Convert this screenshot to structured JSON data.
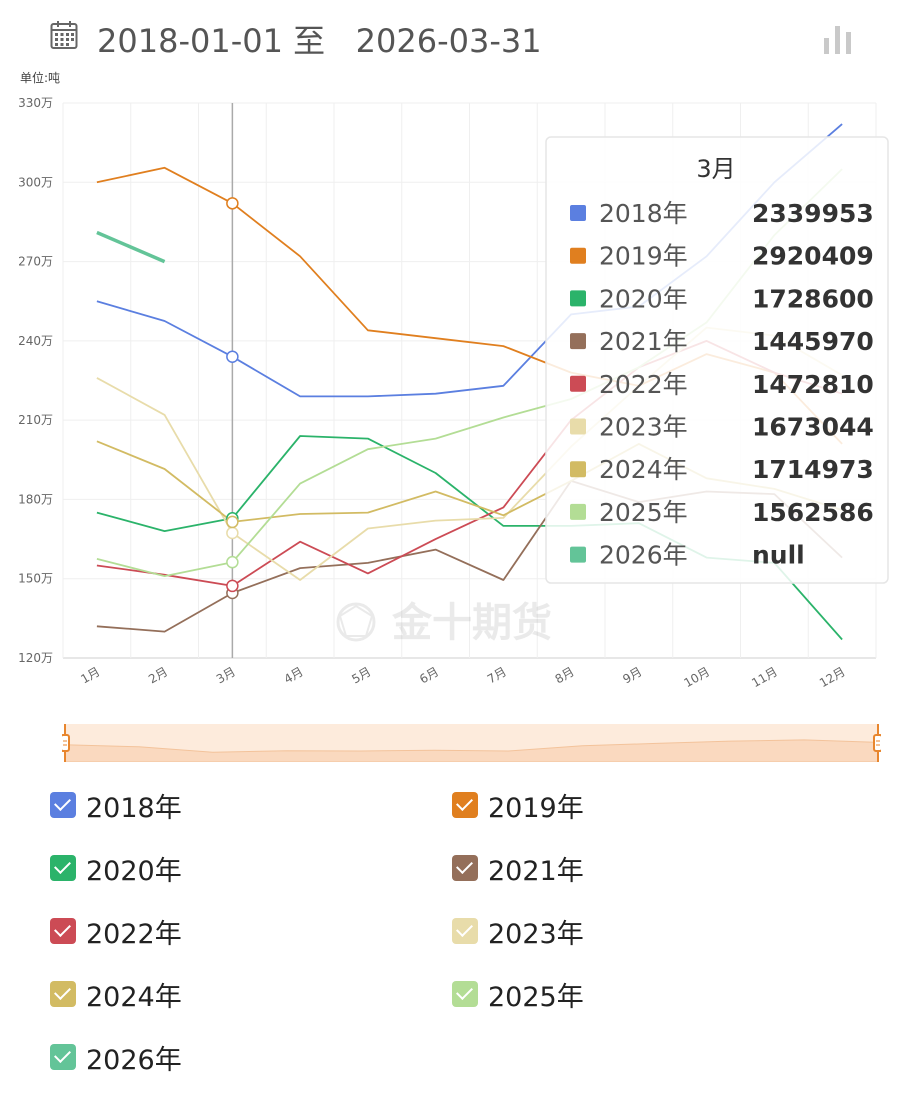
{
  "header": {
    "start_date": "2018-01-01",
    "separator": "至",
    "end_date": "2026-03-31",
    "calendar_icon": "calendar-icon",
    "chart_toggle_icon": "bar-chart-icon"
  },
  "watermark": "金十期货",
  "chart_data": {
    "type": "line",
    "unit_label": "单位:吨",
    "categories": [
      "1月",
      "2月",
      "3月",
      "4月",
      "5月",
      "6月",
      "7月",
      "8月",
      "9月",
      "10月",
      "11月",
      "12月"
    ],
    "y_ticks": [
      "120万",
      "150万",
      "180万",
      "210万",
      "240万",
      "270万",
      "300万",
      "330万"
    ],
    "ylim": [
      1200000,
      3300000
    ],
    "grid": true,
    "hover_index": 2,
    "series": [
      {
        "name": "2018年",
        "color": "#5b7fe0",
        "values": [
          2550000,
          2475000,
          2339953,
          2190000,
          2190000,
          2200000,
          2230000,
          2500000,
          2530000,
          2720000,
          3000000,
          3220000
        ]
      },
      {
        "name": "2019年",
        "color": "#e07f1f",
        "values": [
          3000000,
          3055000,
          2920409,
          2720000,
          2440000,
          2410000,
          2380000,
          2280000,
          2230000,
          2350000,
          2280000,
          2010000
        ]
      },
      {
        "name": "2020年",
        "color": "#2bb36a",
        "values": [
          1750000,
          1680000,
          1728600,
          2040000,
          2030000,
          1900000,
          1700000,
          1700000,
          1710000,
          1580000,
          1560000,
          1270000
        ]
      },
      {
        "name": "2021年",
        "color": "#946f5a",
        "values": [
          1320000,
          1300000,
          1445970,
          1540000,
          1560000,
          1610000,
          1495000,
          1870000,
          1790000,
          1830000,
          1820000,
          1580000
        ]
      },
      {
        "name": "2022年",
        "color": "#cc4b55",
        "values": [
          1550000,
          1515000,
          1472810,
          1640000,
          1520000,
          1650000,
          1770000,
          2100000,
          2300000,
          2400000,
          2280000,
          2200000
        ]
      },
      {
        "name": "2023年",
        "color": "#e8dcaa",
        "values": [
          2260000,
          2120000,
          1673044,
          1495000,
          1690000,
          1720000,
          1730000,
          2000000,
          2230000,
          2450000,
          2420000,
          2270000
        ]
      },
      {
        "name": "2024年",
        "color": "#d2bb63",
        "values": [
          2020000,
          1915000,
          1714973,
          1745000,
          1750000,
          1830000,
          1740000,
          1870000,
          2010000,
          1880000,
          1840000,
          1760000
        ]
      },
      {
        "name": "2025年",
        "color": "#b3dd95",
        "values": [
          1575000,
          1510000,
          1562586,
          1860000,
          1990000,
          2030000,
          2110000,
          2180000,
          2300000,
          2470000,
          2800000,
          3050000
        ]
      },
      {
        "name": "2026年",
        "color": "#63c498",
        "values": [
          2810000,
          2700000,
          null,
          null,
          null,
          null,
          null,
          null,
          null,
          null,
          null,
          null
        ]
      }
    ]
  },
  "tooltip": {
    "title": "3月",
    "rows": [
      {
        "label": "2018年",
        "value": "2339953"
      },
      {
        "label": "2019年",
        "value": "2920409"
      },
      {
        "label": "2020年",
        "value": "1728600"
      },
      {
        "label": "2021年",
        "value": "1445970"
      },
      {
        "label": "2022年",
        "value": "1472810"
      },
      {
        "label": "2023年",
        "value": "1673044"
      },
      {
        "label": "2024年",
        "value": "1714973"
      },
      {
        "label": "2025年",
        "value": "1562586"
      },
      {
        "label": "2026年",
        "value": "null"
      }
    ]
  },
  "legend": {
    "items": [
      {
        "label": "2018年",
        "color": "#5b7fe0",
        "checked": true
      },
      {
        "label": "2019年",
        "color": "#e07f1f",
        "checked": true
      },
      {
        "label": "2020年",
        "color": "#2bb36a",
        "checked": true
      },
      {
        "label": "2021年",
        "color": "#946f5a",
        "checked": true
      },
      {
        "label": "2022年",
        "color": "#cc4b55",
        "checked": true
      },
      {
        "label": "2023年",
        "color": "#e8dcaa",
        "checked": true
      },
      {
        "label": "2024年",
        "color": "#d2bb63",
        "checked": true
      },
      {
        "label": "2025年",
        "color": "#b3dd95",
        "checked": true
      },
      {
        "label": "2026年",
        "color": "#63c498",
        "checked": true
      }
    ]
  },
  "slider": {
    "accent_color": "#e8862e",
    "range_start": 0,
    "range_end": 1
  }
}
